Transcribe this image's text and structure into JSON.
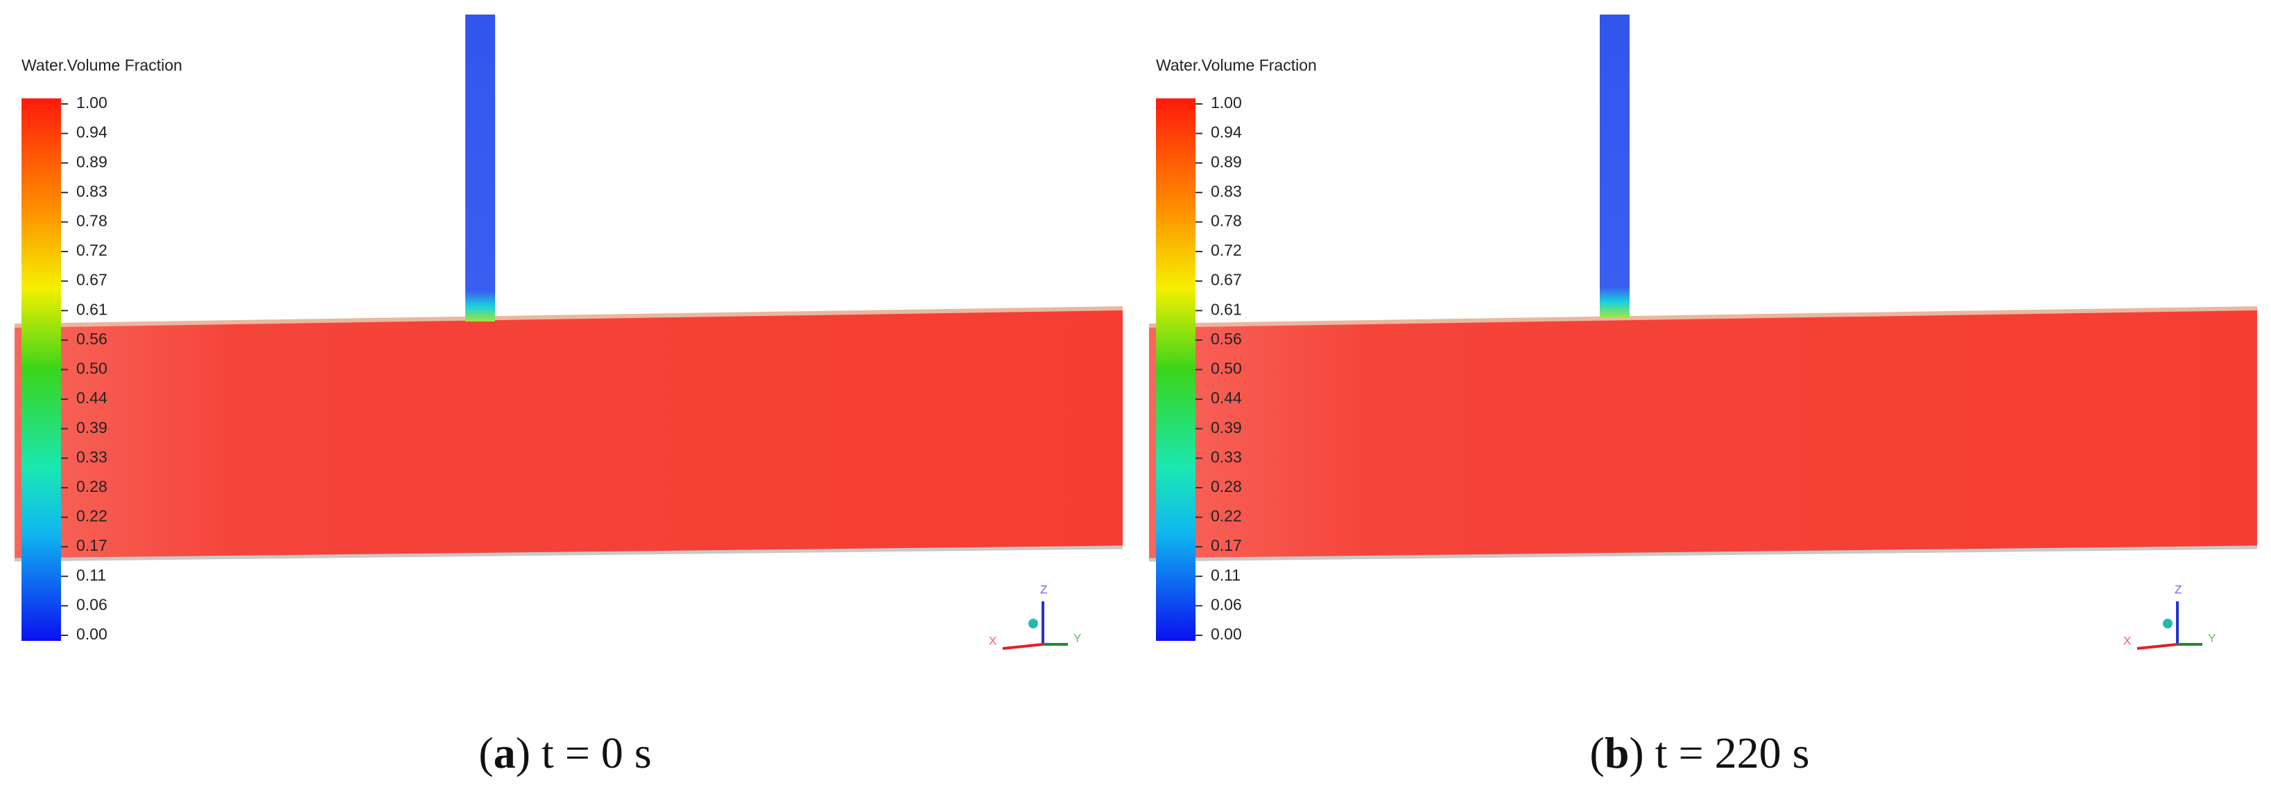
{
  "panels": [
    {
      "legend_title": "Water.Volume Fraction",
      "legend_ticks": [
        "1.00",
        "0.94",
        "0.89",
        "0.83",
        "0.78",
        "0.72",
        "0.67",
        "0.61",
        "0.56",
        "0.50",
        "0.44",
        "0.39",
        "0.33",
        "0.28",
        "0.22",
        "0.17",
        "0.11",
        "0.06",
        "0.00"
      ],
      "axes": {
        "z": "Z",
        "y": "Y",
        "x": "X"
      },
      "caption": {
        "prefix": "(",
        "letter": "a",
        "rest": ") t = 0 s"
      }
    },
    {
      "legend_title": "Water.Volume Fraction",
      "legend_ticks": [
        "1.00",
        "0.94",
        "0.89",
        "0.83",
        "0.78",
        "0.72",
        "0.67",
        "0.61",
        "0.56",
        "0.50",
        "0.44",
        "0.39",
        "0.33",
        "0.28",
        "0.22",
        "0.17",
        "0.11",
        "0.06",
        "0.00"
      ],
      "axes": {
        "z": "Z",
        "y": "Y",
        "x": "X"
      },
      "caption": {
        "prefix": "(",
        "letter": "b",
        "rest": ") t = 220 s"
      }
    }
  ]
}
